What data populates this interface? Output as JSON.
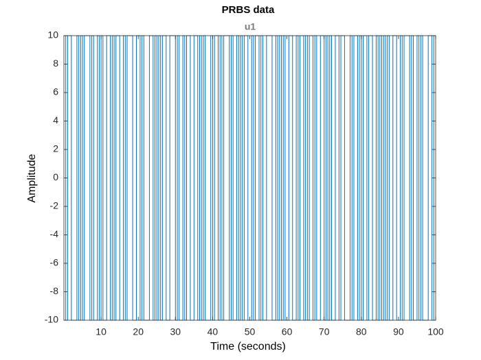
{
  "chart_data": {
    "type": "line",
    "drawstyle": "steps-post",
    "title": "PRBS data",
    "subtitle": "u1",
    "xlabel": "Time (seconds)",
    "ylabel": "Amplitude",
    "xlim": [
      0,
      100
    ],
    "ylim": [
      -10,
      10
    ],
    "xticks": [
      10,
      20,
      30,
      40,
      50,
      60,
      70,
      80,
      90,
      100
    ],
    "yticks": [
      -10,
      -8,
      -6,
      -4,
      -2,
      0,
      2,
      4,
      6,
      8,
      10
    ],
    "grid": false,
    "x": [
      0,
      0.5,
      1,
      1.5,
      2,
      2.5,
      3,
      3.5,
      4,
      4.5,
      5,
      5.5,
      6,
      6.5,
      7,
      7.5,
      8,
      8.5,
      9,
      9.5,
      10,
      10.5,
      11,
      11.5,
      12,
      12.5,
      13,
      13.5,
      14,
      14.5,
      15,
      15.5,
      16,
      16.5,
      17,
      17.5,
      18,
      18.5,
      19,
      19.5,
      20,
      20.5,
      21,
      21.5,
      22,
      22.5,
      23,
      23.5,
      24,
      24.5,
      25,
      25.5,
      26,
      26.5,
      27,
      27.5,
      28,
      28.5,
      29,
      29.5,
      30,
      30.5,
      31,
      31.5,
      32,
      32.5,
      33,
      33.5,
      34,
      34.5,
      35,
      35.5,
      36,
      36.5,
      37,
      37.5,
      38,
      38.5,
      39,
      39.5,
      40,
      40.5,
      41,
      41.5,
      42,
      42.5,
      43,
      43.5,
      44,
      44.5,
      45,
      45.5,
      46,
      46.5,
      47,
      47.5,
      48,
      48.5,
      49,
      49.5,
      50,
      50.5,
      51,
      51.5,
      52,
      52.5,
      53,
      53.5,
      54,
      54.5,
      55,
      55.5,
      56,
      56.5,
      57,
      57.5,
      58,
      58.5,
      59,
      59.5,
      60,
      60.5,
      61,
      61.5,
      62,
      62.5,
      63,
      63.5,
      64,
      64.5,
      65,
      65.5,
      66,
      66.5,
      67,
      67.5,
      68,
      68.5,
      69,
      69.5,
      70,
      70.5,
      71,
      71.5,
      72,
      72.5,
      73,
      73.5,
      74,
      74.5,
      75,
      75.5,
      76,
      76.5,
      77,
      77.5,
      78,
      78.5,
      79,
      79.5,
      80,
      80.5,
      81,
      81.5,
      82,
      82.5,
      83,
      83.5,
      84,
      84.5,
      85,
      85.5,
      86,
      86.5,
      87,
      87.5,
      88,
      88.5,
      89,
      89.5,
      90,
      90.5,
      91,
      91.5,
      92,
      92.5,
      93,
      93.5,
      94,
      94.5,
      95,
      95.5,
      96,
      96.5,
      97,
      97.5,
      98,
      98.5,
      99,
      99.5,
      100
    ],
    "series": [
      {
        "name": "u1",
        "color": "#0072bd",
        "values": [
          10,
          -10,
          10,
          10,
          -10,
          -10,
          -10,
          10,
          -10,
          10,
          -10,
          10,
          10,
          10,
          -10,
          10,
          -10,
          -10,
          10,
          -10,
          10,
          -10,
          -10,
          10,
          10,
          -10,
          10,
          -10,
          10,
          10,
          -10,
          -10,
          10,
          -10,
          10,
          10,
          10,
          -10,
          -10,
          10,
          10,
          -10,
          10,
          -10,
          -10,
          -10,
          10,
          10,
          -10,
          10,
          -10,
          10,
          -10,
          10,
          10,
          -10,
          -10,
          10,
          10,
          10,
          -10,
          10,
          -10,
          -10,
          10,
          -10,
          10,
          10,
          -10,
          -10,
          10,
          10,
          -10,
          10,
          -10,
          10,
          -10,
          -10,
          -10,
          10,
          -10,
          10,
          10,
          -10,
          10,
          -10,
          10,
          10,
          10,
          -10,
          10,
          -10,
          -10,
          10,
          -10,
          10,
          -10,
          10,
          10,
          -10,
          -10,
          10,
          -10,
          10,
          10,
          -10,
          10,
          -10,
          -10,
          10,
          10,
          10,
          -10,
          -10,
          10,
          -10,
          10,
          -10,
          10,
          -10,
          -10,
          10,
          10,
          -10,
          -10,
          10,
          -10,
          10,
          10,
          -10,
          10,
          -10,
          10,
          10,
          -10,
          10,
          -10,
          -10,
          10,
          10,
          -10,
          10,
          -10,
          10,
          -10,
          -10,
          10,
          10,
          -10,
          10,
          10,
          -10,
          -10,
          -10,
          10,
          -10,
          10,
          10,
          -10,
          10,
          -10,
          10,
          10,
          -10,
          10,
          10,
          -10,
          -10,
          10,
          -10,
          10,
          -10,
          10,
          -10,
          10,
          -10,
          -10,
          10,
          10,
          -10,
          -10,
          10,
          -10,
          10,
          10,
          10,
          -10,
          10,
          -10,
          -10,
          10,
          -10,
          10,
          -10,
          -10,
          -10,
          10,
          10,
          -10,
          10,
          10
        ]
      }
    ]
  }
}
